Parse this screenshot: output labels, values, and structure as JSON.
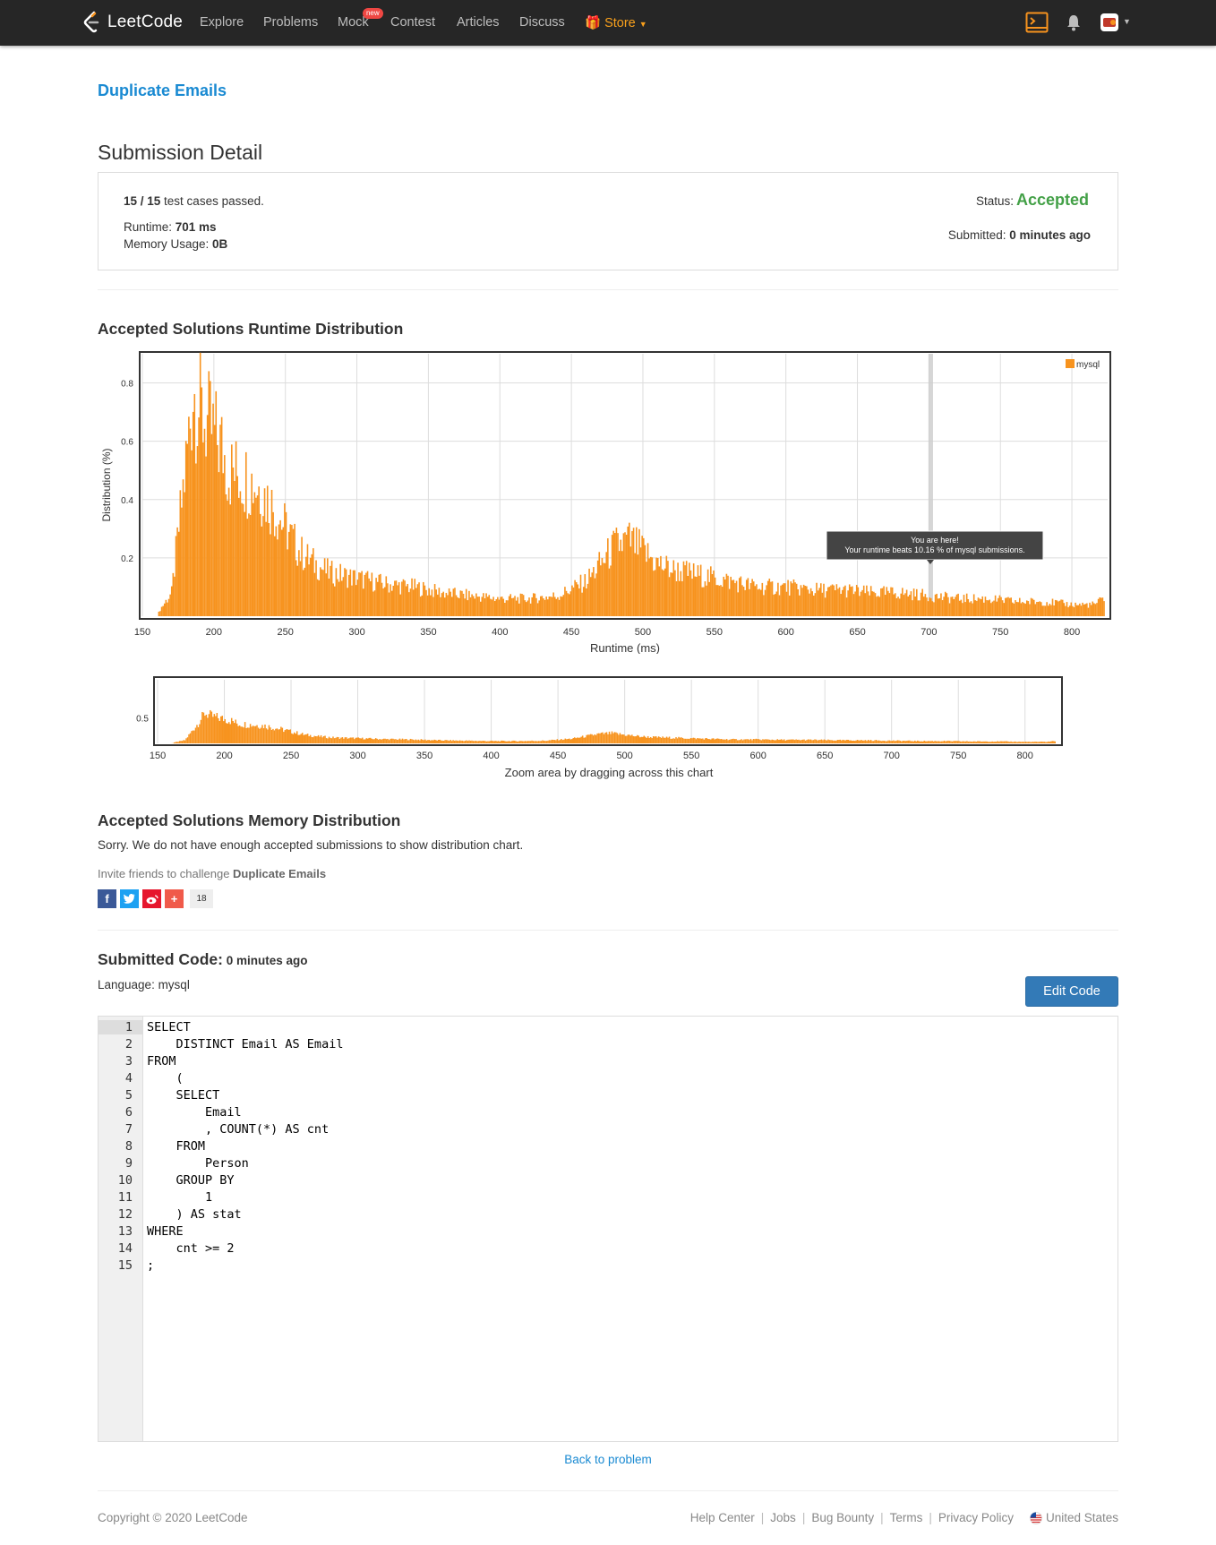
{
  "nav": {
    "logo_text": "LeetCode",
    "items": [
      "Explore",
      "Problems",
      "Mock",
      "Contest",
      "Articles",
      "Discuss"
    ],
    "mock_badge": "new",
    "store": "Store"
  },
  "problem": {
    "title": "Duplicate Emails"
  },
  "submission": {
    "heading": "Submission Detail",
    "passed_count": "15 / 15",
    "passed_suffix": " test cases passed.",
    "runtime_label": "Runtime: ",
    "runtime_value": "701 ms",
    "memory_label": "Memory Usage: ",
    "memory_value": "0B",
    "status_label": "Status:",
    "status_value": "Accepted",
    "submitted_label": "Submitted: ",
    "submitted_value": "0 minutes ago"
  },
  "runtime_section": {
    "heading": "Accepted Solutions Runtime Distribution"
  },
  "chart_data": [
    {
      "type": "bar",
      "ylabel": "Distribution (%)",
      "xlabel": "Runtime (ms)",
      "xlim": [
        150,
        825
      ],
      "ylim": [
        0,
        0.9
      ],
      "x_ticks": [
        150,
        200,
        250,
        300,
        350,
        400,
        450,
        500,
        550,
        600,
        650,
        700,
        750,
        800
      ],
      "y_ticks": [
        0.2,
        0.4,
        0.6,
        0.8
      ],
      "legend": "mysql",
      "legend_position": "top-right",
      "series": [
        {
          "name": "mysql",
          "color": "#f7931e",
          "x": [
            160,
            170,
            175,
            180,
            185,
            190,
            195,
            200,
            205,
            210,
            220,
            230,
            240,
            250,
            260,
            270,
            280,
            300,
            320,
            340,
            360,
            380,
            400,
            420,
            440,
            460,
            470,
            480,
            490,
            500,
            510,
            520,
            540,
            560,
            580,
            600,
            620,
            640,
            660,
            680,
            700,
            720,
            740,
            760,
            780,
            800,
            815,
            822
          ],
          "values": [
            0.01,
            0.08,
            0.3,
            0.52,
            0.78,
            0.7,
            0.66,
            0.62,
            0.58,
            0.5,
            0.48,
            0.45,
            0.38,
            0.3,
            0.22,
            0.18,
            0.15,
            0.13,
            0.11,
            0.1,
            0.08,
            0.07,
            0.06,
            0.06,
            0.07,
            0.12,
            0.18,
            0.24,
            0.26,
            0.22,
            0.18,
            0.16,
            0.14,
            0.12,
            0.1,
            0.1,
            0.09,
            0.09,
            0.08,
            0.08,
            0.07,
            0.06,
            0.06,
            0.05,
            0.05,
            0.04,
            0.04,
            0.06
          ]
        }
      ],
      "marker": {
        "x": 701,
        "tooltip_title": "You are here!",
        "tooltip_text": "Your runtime beats 10.16 % of mysql submissions."
      }
    },
    {
      "type": "bar",
      "x_ticks": [
        150,
        200,
        250,
        300,
        350,
        400,
        450,
        500,
        550,
        600,
        650,
        700,
        750,
        800
      ],
      "y_ticks": [
        0.5
      ],
      "caption": "Zoom area by dragging across this chart"
    }
  ],
  "memory_section": {
    "heading": "Accepted Solutions Memory Distribution",
    "sorry": "Sorry. We do not have enough accepted submissions to show distribution chart.",
    "invite_prefix": "Invite friends to challenge ",
    "invite_problem": "Duplicate Emails",
    "share_count": "18"
  },
  "code_section": {
    "heading": "Submitted Code:",
    "time": " 0 minutes ago",
    "language": "Language: mysql",
    "edit_button": "Edit Code",
    "lines": [
      "SELECT",
      "    DISTINCT Email AS Email",
      "FROM",
      "    (",
      "    SELECT",
      "        Email",
      "        , COUNT(*) AS cnt",
      "    FROM",
      "        Person",
      "    GROUP BY",
      "        1",
      "    ) AS stat",
      "WHERE",
      "    cnt >= 2",
      ";"
    ]
  },
  "back_link": "Back to problem",
  "footer": {
    "copyright": "Copyright © 2020 LeetCode",
    "links": [
      "Help Center",
      "Jobs",
      "Bug Bounty",
      "Terms",
      "Privacy Policy"
    ],
    "region": "United States"
  }
}
